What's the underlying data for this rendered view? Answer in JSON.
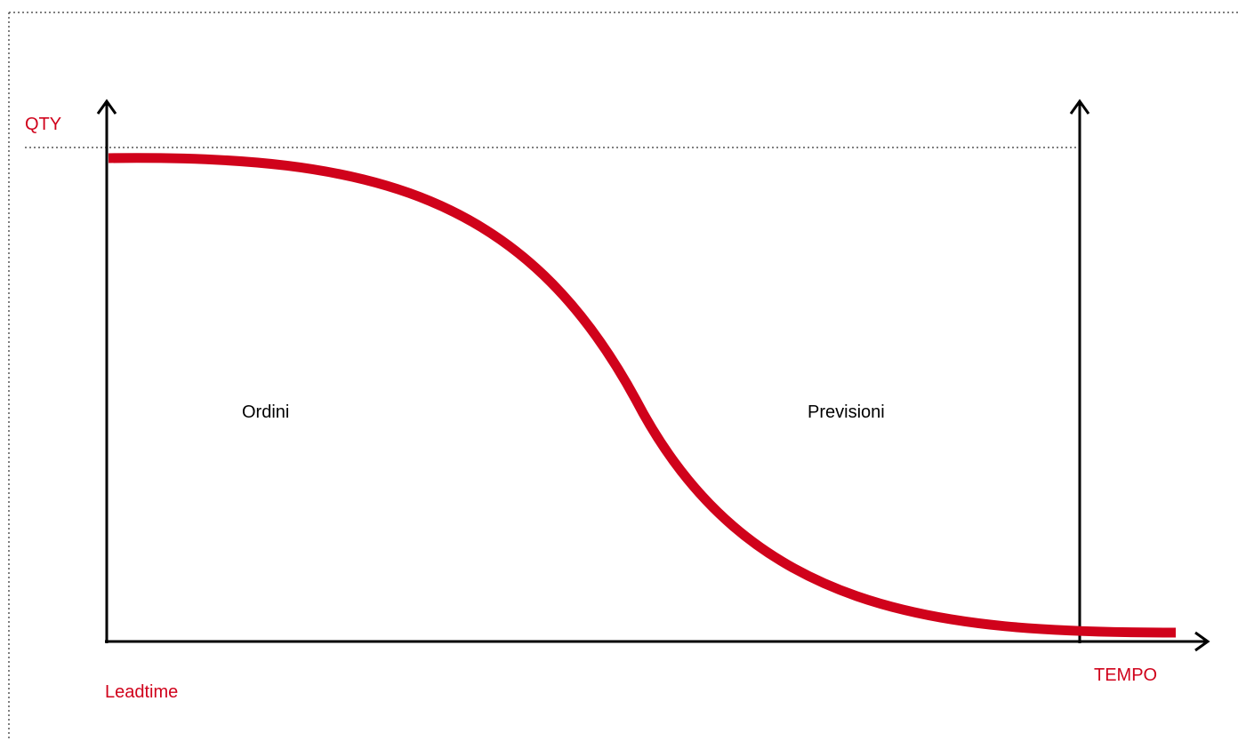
{
  "labels": {
    "y_axis": "QTY",
    "x_axis": "TEMPO",
    "origin": "Leadtime",
    "left_region": "Ordini",
    "right_region": "Previsioni"
  },
  "colors": {
    "accent": "#d0021b",
    "axis": "#000000",
    "text": "#000000",
    "guide": "#555555"
  }
}
